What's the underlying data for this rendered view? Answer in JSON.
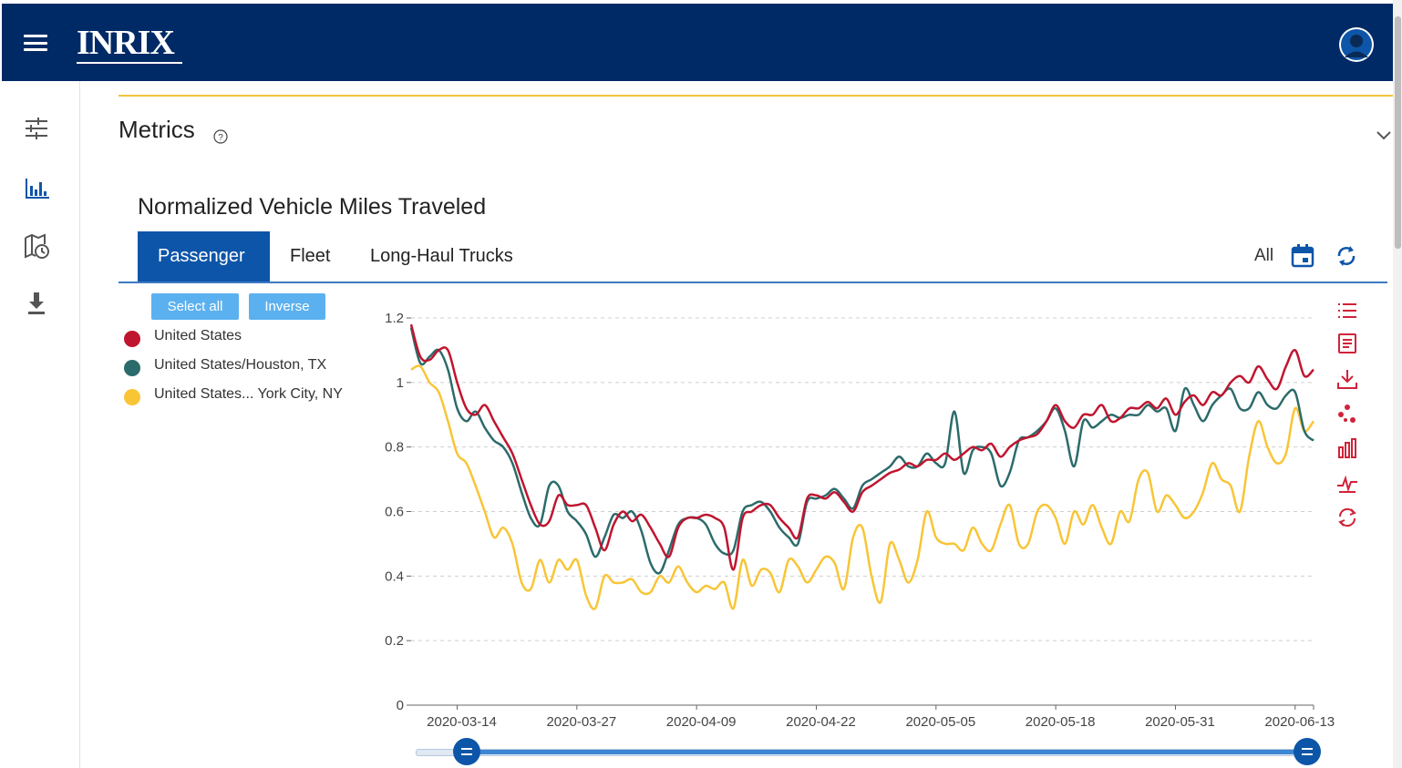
{
  "app": {
    "brand": "INRIX",
    "menu_icon": "hamburger-menu-icon",
    "user_icon": "user-avatar-icon"
  },
  "sidebar": {
    "items": [
      {
        "name": "filters",
        "icon": "sliders-icon",
        "active": false
      },
      {
        "name": "charts",
        "icon": "bar-chart-icon",
        "active": true
      },
      {
        "name": "map-history",
        "icon": "map-clock-icon",
        "active": false
      },
      {
        "name": "download",
        "icon": "download-icon",
        "active": false
      }
    ]
  },
  "section": {
    "title": "Metrics",
    "help_icon": "help-circle-icon",
    "collapse_icon": "chevron-down-icon"
  },
  "panel": {
    "title": "Normalized Vehicle Miles Traveled",
    "tabs": [
      {
        "label": "Passenger",
        "active": true
      },
      {
        "label": "Fleet",
        "active": false
      },
      {
        "label": "Long-Haul Trucks",
        "active": false
      }
    ],
    "range_label": "All",
    "select_all_label": "Select all",
    "inverse_label": "Inverse"
  },
  "legend": [
    {
      "label": "United States",
      "color": "#c0152f"
    },
    {
      "label": "United States/Houston, TX",
      "color": "#2c6b6b"
    },
    {
      "label": "United States... York City, NY",
      "color": "#f8c537"
    }
  ],
  "toolbox": [
    "list-icon",
    "data-view-icon",
    "save-image-icon",
    "scatter-icon",
    "bar-chart-icon",
    "line-chart-icon",
    "restore-icon"
  ],
  "colors": {
    "header": "#002a66",
    "accent": "#0d55a8",
    "toolbox": "#d0233a",
    "rule": "#f2c43a"
  },
  "chart_data": {
    "type": "line",
    "x_start": "2020-03-09",
    "x_ticks": [
      "2020-03-14",
      "2020-03-27",
      "2020-04-09",
      "2020-04-22",
      "2020-05-05",
      "2020-05-18",
      "2020-05-31",
      "2020-06-13"
    ],
    "y_ticks": [
      "0",
      "0.2",
      "0.4",
      "0.6",
      "0.8",
      "1",
      "1.2"
    ],
    "ylim": [
      0,
      1.2
    ],
    "grid": true,
    "series": [
      {
        "name": "United States",
        "color": "#c0152f",
        "values": [
          1.18,
          1.08,
          1.07,
          1.1,
          1.1,
          1.0,
          0.92,
          0.9,
          0.93,
          0.88,
          0.83,
          0.78,
          0.7,
          0.62,
          0.56,
          0.57,
          0.65,
          0.62,
          0.62,
          0.62,
          0.55,
          0.48,
          0.56,
          0.6,
          0.57,
          0.59,
          0.55,
          0.5,
          0.46,
          0.55,
          0.58,
          0.58,
          0.59,
          0.58,
          0.55,
          0.42,
          0.58,
          0.6,
          0.62,
          0.62,
          0.58,
          0.55,
          0.52,
          0.64,
          0.65,
          0.64,
          0.66,
          0.63,
          0.6,
          0.66,
          0.68,
          0.7,
          0.72,
          0.73,
          0.75,
          0.74,
          0.76,
          0.76,
          0.78,
          0.76,
          0.78,
          0.8,
          0.79,
          0.81,
          0.77,
          0.8,
          0.82,
          0.83,
          0.84,
          0.88,
          0.93,
          0.88,
          0.86,
          0.9,
          0.9,
          0.93,
          0.88,
          0.89,
          0.92,
          0.92,
          0.94,
          0.92,
          0.95,
          0.9,
          0.94,
          0.96,
          0.93,
          0.97,
          0.96,
          1.0,
          1.02,
          1.0,
          1.05,
          1.01,
          0.98,
          1.05,
          1.1,
          1.02,
          1.04
        ]
      },
      {
        "name": "United States/Houston, TX",
        "color": "#2c6b6b",
        "values": [
          1.17,
          1.06,
          1.08,
          1.1,
          1.04,
          0.92,
          0.88,
          0.91,
          0.86,
          0.82,
          0.8,
          0.75,
          0.66,
          0.58,
          0.56,
          0.68,
          0.68,
          0.6,
          0.57,
          0.53,
          0.46,
          0.52,
          0.59,
          0.58,
          0.6,
          0.54,
          0.44,
          0.41,
          0.48,
          0.56,
          0.58,
          0.58,
          0.56,
          0.5,
          0.47,
          0.48,
          0.6,
          0.62,
          0.63,
          0.6,
          0.55,
          0.52,
          0.5,
          0.63,
          0.64,
          0.65,
          0.67,
          0.64,
          0.61,
          0.68,
          0.7,
          0.72,
          0.74,
          0.77,
          0.74,
          0.74,
          0.78,
          0.75,
          0.75,
          0.91,
          0.72,
          0.79,
          0.8,
          0.78,
          0.68,
          0.72,
          0.82,
          0.83,
          0.85,
          0.88,
          0.92,
          0.85,
          0.74,
          0.88,
          0.86,
          0.88,
          0.9,
          0.89,
          0.9,
          0.9,
          0.93,
          0.91,
          0.92,
          0.85,
          0.98,
          0.93,
          0.88,
          0.93,
          0.96,
          0.98,
          0.92,
          0.92,
          0.97,
          0.93,
          0.92,
          0.96,
          0.97,
          0.85,
          0.82
        ]
      },
      {
        "name": "United States... York City, NY",
        "color": "#f8c537",
        "values": [
          1.04,
          1.05,
          1.0,
          0.97,
          0.88,
          0.78,
          0.75,
          0.68,
          0.6,
          0.52,
          0.55,
          0.5,
          0.38,
          0.36,
          0.45,
          0.38,
          0.45,
          0.42,
          0.45,
          0.34,
          0.3,
          0.4,
          0.38,
          0.38,
          0.39,
          0.35,
          0.35,
          0.4,
          0.38,
          0.43,
          0.38,
          0.35,
          0.37,
          0.36,
          0.38,
          0.3,
          0.45,
          0.37,
          0.42,
          0.41,
          0.35,
          0.45,
          0.43,
          0.38,
          0.42,
          0.46,
          0.44,
          0.36,
          0.52,
          0.55,
          0.4,
          0.32,
          0.5,
          0.45,
          0.38,
          0.45,
          0.6,
          0.52,
          0.5,
          0.5,
          0.48,
          0.55,
          0.5,
          0.48,
          0.56,
          0.62,
          0.5,
          0.5,
          0.6,
          0.62,
          0.58,
          0.5,
          0.6,
          0.56,
          0.62,
          0.55,
          0.5,
          0.6,
          0.57,
          0.7,
          0.72,
          0.6,
          0.65,
          0.62,
          0.58,
          0.6,
          0.66,
          0.75,
          0.7,
          0.68,
          0.6,
          0.77,
          0.88,
          0.8,
          0.75,
          0.78,
          0.92,
          0.85,
          0.88
        ]
      }
    ]
  }
}
